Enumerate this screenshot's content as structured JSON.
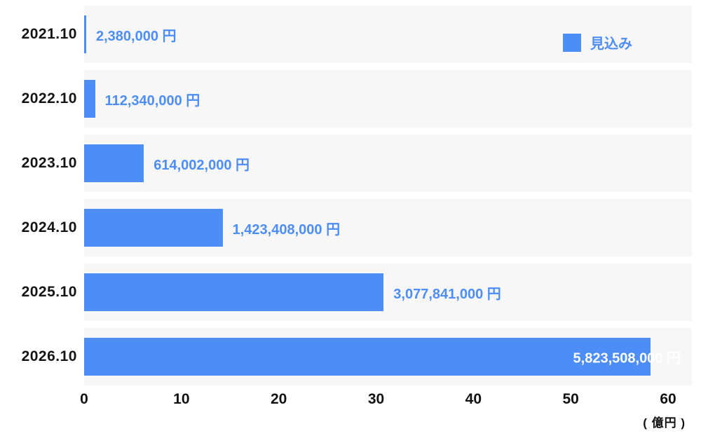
{
  "chart_data": {
    "type": "bar",
    "orientation": "horizontal",
    "title": "",
    "categories": [
      "2021.10",
      "2022.10",
      "2023.10",
      "2024.10",
      "2025.10",
      "2026.10"
    ],
    "values_yen": [
      2380000,
      112340000,
      614002000,
      1423408000,
      3077841000,
      5823508000
    ],
    "values_oku": [
      0.0238,
      1.1234,
      6.14002,
      14.23408,
      30.77841,
      58.23508
    ],
    "value_labels": [
      "2,380,000 円",
      "112,340,000 円",
      "614,002,000 円",
      "1,423,408,000 円",
      "3,077,841,000 円",
      "5,823,508,000 円"
    ],
    "x_ticks": [
      "0",
      "10",
      "20",
      "30",
      "40",
      "50",
      "60"
    ],
    "xlim": [
      0,
      60
    ],
    "unit_label": "( 億円 )",
    "legend": {
      "label": "見込み",
      "color": "#4d8df6"
    },
    "colors": {
      "bar": "#4d8df6",
      "band_background": "#f7f7f7",
      "value_text": "#4d8df6",
      "axis_text": "#111111"
    },
    "grid": false,
    "legend_position": "top-right"
  }
}
